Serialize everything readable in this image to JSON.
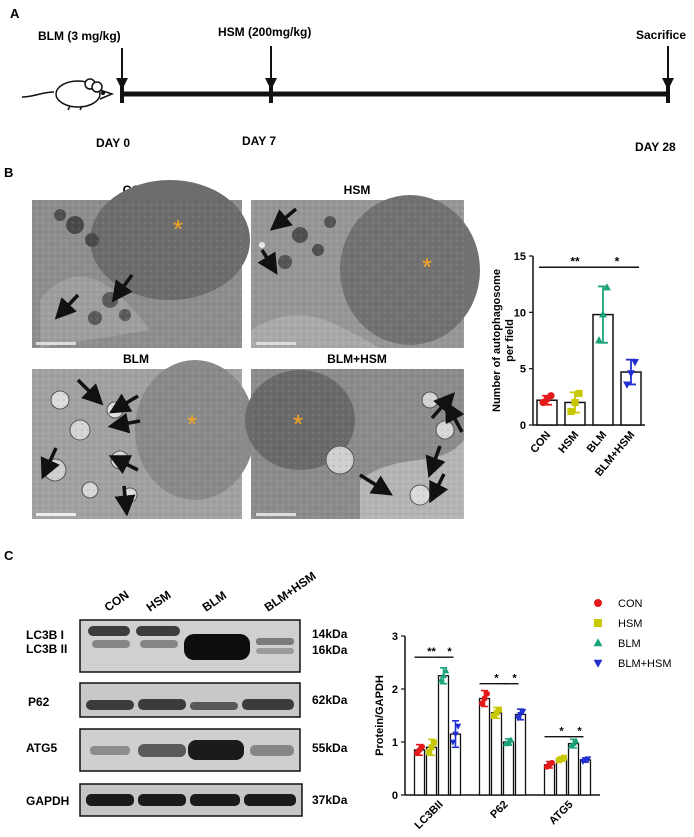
{
  "panel_a": {
    "letter": "A",
    "bleomycin": "BLM (3 mg/kg)",
    "hsm": "HSM (200mg/kg)",
    "sacrifice": "Sacrifice",
    "day0": "DAY  0",
    "day7": "DAY  7",
    "day28": "DAY  28"
  },
  "panel_b": {
    "letter": "B",
    "tem_labels": [
      "CON",
      "HSM",
      "BLM",
      "BLM+HSM"
    ],
    "star": "*",
    "chart_data": {
      "type": "bar",
      "ylabel": "Number of autophagosome per field",
      "categories": [
        "CON",
        "HSM",
        "BLM",
        "BLM+HSM"
      ],
      "values": [
        2.2,
        2.0,
        9.8,
        4.7
      ],
      "errors": [
        0.4,
        0.9,
        2.5,
        1.1
      ],
      "points": [
        [
          2.0,
          2.3,
          2.6
        ],
        [
          1.2,
          2.0,
          2.8
        ],
        [
          7.5,
          9.8,
          12.2
        ],
        [
          3.6,
          4.6,
          5.6
        ]
      ],
      "colors": [
        "#e31a1c",
        "#c8c800",
        "#1aa37a",
        "#1f2fd0"
      ],
      "markers": [
        "circle",
        "square",
        "triangle-up",
        "triangle-down"
      ],
      "ylim": [
        0,
        15
      ],
      "yticks": [
        0,
        5,
        10,
        15
      ],
      "significance": [
        {
          "from": 0,
          "to": 2,
          "label": "**"
        },
        {
          "from": 2,
          "to": 3,
          "label": "*"
        }
      ]
    }
  },
  "panel_c": {
    "letter": "C",
    "lanes": [
      "CON",
      "HSM",
      "BLM",
      "BLM+HSM"
    ],
    "blots": [
      {
        "labels": [
          "LC3B I",
          "LC3B II"
        ],
        "kda": [
          "14kDa",
          "16kDa"
        ]
      },
      {
        "labels": [
          "P62"
        ],
        "kda": [
          "62kDa"
        ]
      },
      {
        "labels": [
          "ATG5"
        ],
        "kda": [
          "55kDa"
        ]
      },
      {
        "labels": [
          "GAPDH"
        ],
        "kda": [
          "37kDa"
        ]
      }
    ],
    "chart_data": {
      "type": "bar",
      "ylabel": "Protein/GAPDH",
      "categories": [
        "LC3BII",
        "P62",
        "ATG5"
      ],
      "series": [
        {
          "name": "CON",
          "color": "#e31a1c",
          "marker": "circle",
          "values": [
            0.85,
            1.82,
            0.57
          ],
          "errors": [
            0.1,
            0.15,
            0.06
          ]
        },
        {
          "name": "HSM",
          "color": "#c8c800",
          "marker": "square",
          "values": [
            0.9,
            1.55,
            0.68
          ],
          "errors": [
            0.15,
            0.1,
            0.04
          ]
        },
        {
          "name": "BLM",
          "color": "#1aa37a",
          "marker": "triangle-up",
          "values": [
            2.25,
            1.0,
            0.97
          ],
          "errors": [
            0.15,
            0.06,
            0.08
          ]
        },
        {
          "name": "BLM+HSM",
          "color": "#1f2fd0",
          "marker": "triangle-down",
          "values": [
            1.15,
            1.52,
            0.66
          ],
          "errors": [
            0.25,
            0.1,
            0.04
          ]
        }
      ],
      "ylim": [
        0,
        3
      ],
      "yticks": [
        0,
        1,
        2,
        3
      ],
      "significance": [
        {
          "group": 0,
          "from": 0,
          "to": 2,
          "label": "**"
        },
        {
          "group": 0,
          "from": 2,
          "to": 3,
          "label": "*"
        },
        {
          "group": 1,
          "from": 0,
          "to": 2,
          "label": "*"
        },
        {
          "group": 1,
          "from": 2,
          "to": 3,
          "label": "*"
        },
        {
          "group": 2,
          "from": 0,
          "to": 2,
          "label": "*"
        },
        {
          "group": 2,
          "from": 2,
          "to": 3,
          "label": "*"
        }
      ],
      "legend": "top-right"
    }
  }
}
